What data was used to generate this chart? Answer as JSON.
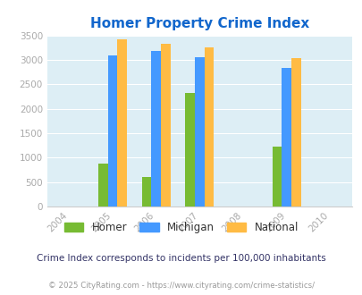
{
  "title": "Homer Property Crime Index",
  "years": [
    2004,
    2005,
    2006,
    2007,
    2008,
    2009,
    2010
  ],
  "data": {
    "2005": {
      "Homer": 880,
      "Michigan": 3090,
      "National": 3420
    },
    "2006": {
      "Homer": 610,
      "Michigan": 3190,
      "National": 3330
    },
    "2007": {
      "Homer": 2320,
      "Michigan": 3060,
      "National": 3250
    },
    "2009": {
      "Homer": 1220,
      "Michigan": 2830,
      "National": 3030
    }
  },
  "bar_colors": {
    "Homer": "#77bb33",
    "Michigan": "#4499ff",
    "National": "#ffbb44"
  },
  "ylim": [
    0,
    3500
  ],
  "yticks": [
    0,
    500,
    1000,
    1500,
    2000,
    2500,
    3000,
    3500
  ],
  "xtick_color": "#aaaaaa",
  "ytick_color": "#aaaaaa",
  "title_color": "#1166cc",
  "bg_color": "#ddeef5",
  "legend_labels": [
    "Homer",
    "Michigan",
    "National"
  ],
  "note": "Crime Index corresponds to incidents per 100,000 inhabitants",
  "footer": "© 2025 CityRating.com - https://www.cityrating.com/crime-statistics/",
  "bar_width": 0.22,
  "group_years_with_data": [
    2005,
    2006,
    2007,
    2009
  ]
}
